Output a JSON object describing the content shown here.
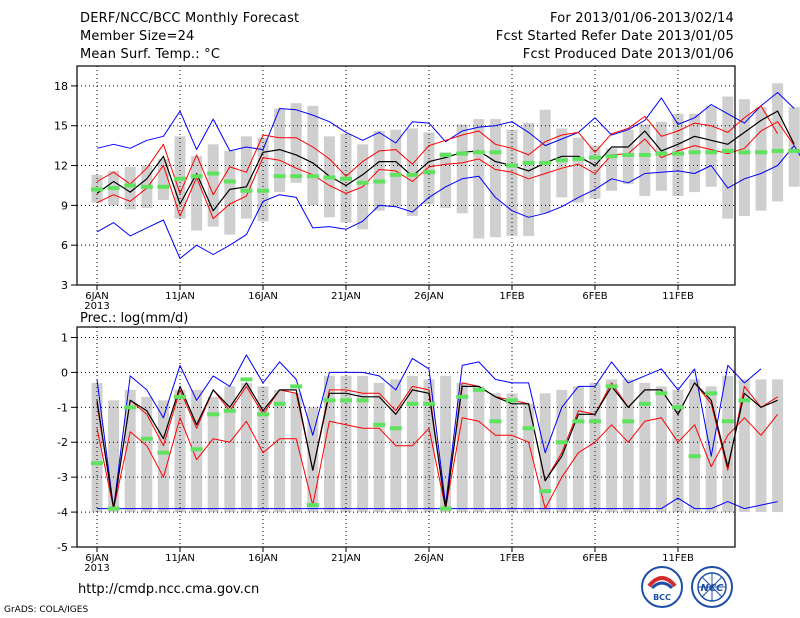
{
  "header": {
    "left": [
      "DERF/NCC/BCC Monthly Forecast",
      "Member Size=24",
      "Mean Surf. Temp.: °C"
    ],
    "right": [
      "For 2013/01/06-2013/02/14",
      "Fcst Started Refer Date 2013/01/05",
      "Fcst Produced Date 2013/01/06"
    ]
  },
  "footer": {
    "url": "http://cmdp.ncc.cma.gov.cn",
    "credit": "GrADS: COLA/IGES"
  },
  "logos": {
    "bcc": "BCC",
    "ncc": "NCC"
  },
  "chart_data": [
    {
      "type": "line",
      "title": "Mean Surf. Temp.: °C",
      "x_tick_labels": [
        "6JAN",
        "11JAN",
        "16JAN",
        "21JAN",
        "26JAN",
        "1FEB",
        "6FEB",
        "11FEB"
      ],
      "x_year_label": "2013",
      "ylim": [
        3,
        19.5
      ],
      "yticks": [
        3,
        6,
        9,
        12,
        15,
        18
      ],
      "colors": {
        "max": "#0000ff",
        "min": "#0000ff",
        "upper": "#ff0000",
        "lower": "#ff0000",
        "mean": "#000000",
        "climatology": "#5fe35f",
        "spread": "#cfcfcf"
      },
      "series": [
        {
          "name": "max",
          "values": [
            13.3,
            13.6,
            13.3,
            13.9,
            14.2,
            16.1,
            13.2,
            15.5,
            13.1,
            13.4,
            13.2,
            16.3,
            16.2,
            15.8,
            15.3,
            14.5,
            13.9,
            14.5,
            13.7,
            15.3,
            15.2,
            13.8,
            14.6,
            14.9,
            15.0,
            15.3,
            14.5,
            13.5,
            14.0,
            14.5,
            15.6,
            14.3,
            14.7,
            15.4,
            17.1,
            15.1,
            15.6,
            16.6,
            15.9,
            15.2,
            16.5,
            17.5,
            16.3
          ]
        },
        {
          "name": "upper",
          "values": [
            10.8,
            11.5,
            10.6,
            11.8,
            13.6,
            9.9,
            12.8,
            9.8,
            11.9,
            11.5,
            14.3,
            14.1,
            14.1,
            13.4,
            12.5,
            11.2,
            12.3,
            13.1,
            13.2,
            12.1,
            13.5,
            13.9,
            14.3,
            14.6,
            13.6,
            13.3,
            12.8,
            13.8,
            14.3,
            14.5,
            13.0,
            14.4,
            14.8,
            15.7,
            14.2,
            14.6,
            15.2,
            15.0,
            14.5,
            15.6,
            16.5,
            14.4
          ]
        },
        {
          "name": "mean",
          "values": [
            9.9,
            10.8,
            10.0,
            11.0,
            12.7,
            9.1,
            11.4,
            8.6,
            10.2,
            10.4,
            13.0,
            13.2,
            12.8,
            12.2,
            11.2,
            10.5,
            11.3,
            12.3,
            12.3,
            11.2,
            12.3,
            12.6,
            13.0,
            13.1,
            12.3,
            12.0,
            11.6,
            12.2,
            12.7,
            12.7,
            12.0,
            13.4,
            13.4,
            14.6,
            13.1,
            13.6,
            14.2,
            13.9,
            13.6,
            14.5,
            15.4,
            16.1,
            13.6
          ]
        },
        {
          "name": "lower",
          "values": [
            9.2,
            9.8,
            9.3,
            10.3,
            12.0,
            8.2,
            11.1,
            8.0,
            9.1,
            9.7,
            12.6,
            12.4,
            11.8,
            11.3,
            10.5,
            9.9,
            10.4,
            11.7,
            11.6,
            10.8,
            11.9,
            12.1,
            12.2,
            12.5,
            11.7,
            11.5,
            11.0,
            11.4,
            11.8,
            12.1,
            11.4,
            12.8,
            12.9,
            14.0,
            12.6,
            13.1,
            13.5,
            13.2,
            12.9,
            13.3,
            14.6,
            15.3,
            13.5
          ]
        },
        {
          "name": "min",
          "values": [
            7.0,
            7.7,
            6.7,
            7.3,
            7.9,
            5.0,
            6.0,
            5.3,
            6.0,
            6.8,
            9.3,
            9.8,
            9.6,
            7.3,
            7.4,
            7.2,
            7.8,
            9.0,
            8.9,
            8.5,
            9.6,
            10.4,
            11.0,
            11.2,
            9.6,
            8.6,
            8.1,
            8.4,
            8.9,
            9.6,
            10.2,
            11.0,
            10.7,
            11.4,
            11.5,
            11.6,
            11.4,
            12.0,
            10.3,
            11.0,
            11.4,
            12.0,
            13.5,
            11.4
          ]
        },
        {
          "name": "spread_high",
          "values": [
            11.3,
            11.6,
            11.9,
            12.0,
            12.5,
            14.2,
            12.7,
            13.6,
            13.1,
            14.2,
            14.1,
            16.3,
            16.7,
            16.5,
            14.2,
            14.4,
            13.6,
            14.6,
            14.7,
            14.8,
            14.5,
            13.0,
            15.1,
            15.5,
            15.5,
            14.7,
            15.2,
            16.2,
            14.8,
            14.1,
            13.5,
            13.3,
            14.7,
            15.1,
            15.3,
            15.9,
            15.9,
            16.5,
            17.2,
            17.0,
            16.4,
            18.2,
            16.4
          ]
        },
        {
          "name": "spread_low",
          "values": [
            9.2,
            9.0,
            8.7,
            8.8,
            9.4,
            8.0,
            7.1,
            7.4,
            6.8,
            8.0,
            7.8,
            10.0,
            10.7,
            9.0,
            8.1,
            7.7,
            7.2,
            8.6,
            8.9,
            8.2,
            9.1,
            8.8,
            8.4,
            6.5,
            6.6,
            6.7,
            6.7,
            8.4,
            9.6,
            9.2,
            9.5,
            10.1,
            10.6,
            9.7,
            10.1,
            9.7,
            10.0,
            10.4,
            8.0,
            8.2,
            8.6,
            9.3,
            10.4,
            9.9
          ]
        },
        {
          "name": "climatology",
          "values": [
            10.2,
            10.3,
            10.5,
            10.4,
            10.4,
            11.0,
            11.2,
            11.4,
            10.8,
            10.1,
            10.1,
            11.2,
            11.2,
            11.2,
            11.1,
            11.0,
            10.7,
            10.8,
            11.3,
            11.3,
            11.5,
            12.8,
            12.9,
            13.0,
            13.0,
            12.0,
            12.2,
            12.2,
            12.4,
            12.5,
            12.6,
            12.7,
            12.8,
            12.8,
            12.9,
            12.9,
            13.0,
            13.0,
            13.1,
            13.0,
            13.0,
            13.1,
            13.1
          ]
        }
      ]
    },
    {
      "type": "line",
      "title": "Prec.: log(mm/d)",
      "x_tick_labels": [
        "6JAN",
        "11JAN",
        "16JAN",
        "21JAN",
        "26JAN",
        "1FEB",
        "6FEB",
        "11FEB"
      ],
      "x_year_label": "2013",
      "ylim": [
        -5,
        1.3
      ],
      "yticks": [
        -5,
        -4,
        -3,
        -2,
        -1,
        0,
        1
      ],
      "colors": {
        "max": "#0000ff",
        "min": "#0000ff",
        "upper": "#ff0000",
        "lower": "#ff0000",
        "mean": "#000000",
        "climatology": "#5fe35f",
        "spread": "#cfcfcf"
      },
      "series": [
        {
          "name": "max",
          "values": [
            -0.2,
            -3.9,
            -0.1,
            -0.5,
            -1.3,
            0.2,
            -0.8,
            -0.1,
            -0.4,
            0.5,
            -0.3,
            0.3,
            -0.2,
            -1.8,
            0.0,
            0.0,
            0.0,
            -0.1,
            -0.5,
            0.4,
            0.1,
            -3.8,
            0.2,
            0.3,
            -0.2,
            -0.3,
            -0.3,
            -2.3,
            -1.0,
            -0.4,
            -0.4,
            0.3,
            -0.3,
            -0.1,
            0.1,
            -0.5,
            0.1,
            -2.4,
            0.2,
            -0.3,
            0.1
          ]
        },
        {
          "name": "upper",
          "values": [
            -0.9,
            -3.9,
            -0.8,
            -1.2,
            -2.1,
            -0.5,
            -1.6,
            -0.5,
            -1.1,
            -0.4,
            -1.2,
            -0.5,
            -0.6,
            -2.8,
            -0.5,
            -0.5,
            -0.6,
            -0.6,
            -1.1,
            -0.4,
            -0.5,
            -3.9,
            -0.3,
            -0.4,
            -0.7,
            -0.8,
            -0.9,
            -3.1,
            -2.3,
            -1.1,
            -1.2,
            -0.3,
            -1.0,
            -0.5,
            -0.5,
            -1.2,
            -0.3,
            -0.9,
            -2.8,
            -0.4,
            -1.0,
            -0.7
          ]
        },
        {
          "name": "mean",
          "values": [
            -0.8,
            -3.9,
            -0.8,
            -1.1,
            -1.9,
            -0.4,
            -1.5,
            -0.5,
            -1.0,
            -0.3,
            -1.1,
            -0.5,
            -0.5,
            -2.8,
            -0.6,
            -0.6,
            -0.7,
            -0.7,
            -1.2,
            -0.5,
            -0.6,
            -3.9,
            -0.4,
            -0.4,
            -0.7,
            -0.9,
            -0.9,
            -3.1,
            -2.4,
            -1.2,
            -1.2,
            -0.4,
            -1.0,
            -0.5,
            -0.5,
            -1.2,
            -0.3,
            -0.8,
            -2.7,
            -0.6,
            -1.0,
            -0.8
          ]
        },
        {
          "name": "lower",
          "values": [
            -1.6,
            -3.9,
            -1.7,
            -2.1,
            -3.0,
            -1.3,
            -2.5,
            -1.9,
            -2.0,
            -1.4,
            -2.3,
            -1.9,
            -1.9,
            -3.8,
            -1.4,
            -1.5,
            -1.6,
            -1.6,
            -2.1,
            -2.1,
            -1.6,
            -3.9,
            -1.3,
            -1.4,
            -1.8,
            -1.8,
            -2.0,
            -3.9,
            -3.0,
            -2.3,
            -2.0,
            -1.5,
            -2.0,
            -1.4,
            -1.3,
            -2.0,
            -1.5,
            -2.7,
            -1.8,
            -1.3,
            -1.8,
            -1.2
          ]
        },
        {
          "name": "min",
          "values": [
            -3.9,
            -3.9,
            -3.9,
            -3.9,
            -3.9,
            -3.9,
            -3.9,
            -3.9,
            -3.9,
            -3.9,
            -3.9,
            -3.9,
            -3.9,
            -3.9,
            -3.9,
            -3.9,
            -3.9,
            -3.9,
            -3.9,
            -3.9,
            -3.9,
            -3.9,
            -3.9,
            -3.9,
            -3.9,
            -3.9,
            -3.9,
            -3.9,
            -3.9,
            -3.9,
            -3.9,
            -3.9,
            -3.9,
            -3.9,
            -3.9,
            -3.6,
            -3.9,
            -3.9,
            -3.7,
            -3.9,
            -3.8,
            -3.7
          ]
        },
        {
          "name": "spread_high",
          "values": [
            -0.3,
            -0.8,
            -0.5,
            -0.7,
            -0.8,
            -0.5,
            -0.5,
            -0.7,
            -0.4,
            -0.3,
            -0.4,
            -0.5,
            -0.6,
            -1.0,
            -0.1,
            -0.1,
            -0.1,
            -0.3,
            -0.2,
            -0.1,
            -0.2,
            -0.1,
            -0.3,
            -0.4,
            -0.6,
            -0.6,
            -0.9,
            -0.6,
            -0.5,
            -0.4,
            -0.3,
            -0.2,
            -0.2,
            -0.3,
            -0.4,
            -0.5,
            -0.2,
            -0.4,
            -0.1,
            -0.2,
            -0.2,
            -0.2
          ]
        },
        {
          "name": "spread_low",
          "values": [
            -4.0,
            -4.0,
            -4.0,
            -4.0,
            -4.0,
            -4.0,
            -4.0,
            -4.0,
            -4.0,
            -4.0,
            -4.0,
            -4.0,
            -4.0,
            -4.0,
            -4.0,
            -4.0,
            -4.0,
            -4.0,
            -4.0,
            -4.0,
            -4.0,
            -4.0,
            -4.0,
            -4.0,
            -4.0,
            -4.0,
            -4.0,
            -4.0,
            -4.0,
            -4.0,
            -4.0,
            -4.0,
            -4.0,
            -4.0,
            -4.0,
            -4.0,
            -4.0,
            -4.0,
            -4.0,
            -4.0,
            -4.0,
            -4.0
          ]
        },
        {
          "name": "climatology",
          "values": [
            -2.6,
            -3.9,
            -1.0,
            -1.9,
            -2.3,
            -0.7,
            -2.2,
            -1.2,
            -1.1,
            -0.2,
            -1.2,
            -0.9,
            -0.4,
            -3.8,
            -0.8,
            -0.8,
            -0.8,
            -1.5,
            -1.6,
            -0.9,
            -0.9,
            -3.9,
            -0.7,
            -0.5,
            -1.4,
            -0.8,
            -1.6,
            -3.4,
            -2.0,
            -1.4,
            -1.4,
            -0.4,
            -1.4,
            -0.9,
            -0.6,
            -1.0,
            -2.4,
            -0.6,
            -1.4,
            -0.8
          ]
        }
      ]
    }
  ]
}
